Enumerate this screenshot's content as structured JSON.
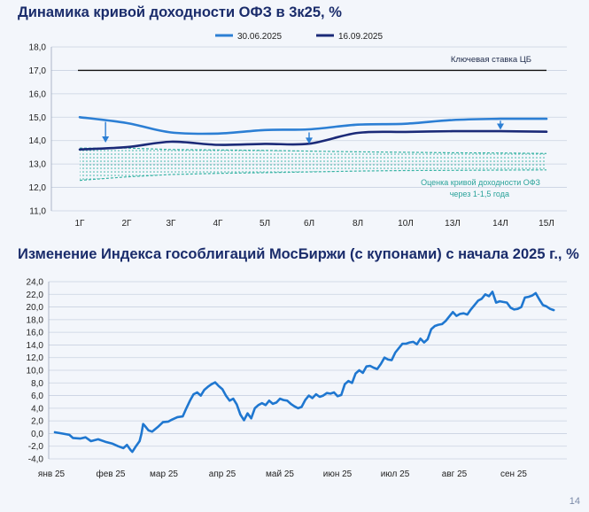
{
  "page_number": "14",
  "chart_data": [
    {
      "type": "line",
      "title": "Динамика кривой доходности ОФЗ в 3к25, %",
      "categories": [
        "1Г",
        "2Г",
        "3Г",
        "4Г",
        "5Л",
        "6Л",
        "8Л",
        "10Л",
        "13Л",
        "14Л",
        "15Л"
      ],
      "ylim": [
        11.0,
        18.0
      ],
      "yticks": [
        "11,0",
        "12,0",
        "13,0",
        "14,0",
        "15,0",
        "16,0",
        "17,0",
        "18,0"
      ],
      "grid": true,
      "legend_position": "top",
      "series": [
        {
          "name": "30.06.2025",
          "color": "#2c7fd4",
          "values": [
            15.0,
            14.75,
            14.35,
            14.3,
            14.45,
            14.48,
            14.68,
            14.72,
            14.88,
            14.93,
            14.93
          ]
        },
        {
          "name": "16.09.2025",
          "color": "#1b2a78",
          "values": [
            13.62,
            13.72,
            13.95,
            13.82,
            13.86,
            13.87,
            14.33,
            14.37,
            14.4,
            14.4,
            14.38
          ]
        }
      ],
      "reference_line": {
        "label": "Ключевая ставка ЦБ",
        "value": 17.0,
        "color": "#111111"
      },
      "forecast_band": {
        "label_line1": "Оценка кривой доходности ОФЗ",
        "label_line2": "через 1-1,5 года",
        "color": "#37b3a4",
        "upper": [
          13.68,
          13.68,
          13.62,
          13.6,
          13.58,
          13.55,
          13.52,
          13.5,
          13.48,
          13.47,
          13.45
        ],
        "lower": [
          12.3,
          12.45,
          12.55,
          12.6,
          12.63,
          12.66,
          12.7,
          12.72,
          12.73,
          12.74,
          12.75
        ]
      },
      "arrows": [
        {
          "x_index": 0.55,
          "from": 14.8,
          "to": 13.95
        },
        {
          "x_index": 5.0,
          "from": 14.35,
          "to": 13.9
        },
        {
          "x_index": 9.0,
          "from": 14.85,
          "to": 14.5
        }
      ]
    },
    {
      "type": "line",
      "title": "Изменение Индекса гособлигаций МосБиржи (с купонами) с начала 2025 г., %",
      "ylim": [
        -4.0,
        24.0
      ],
      "yticks": [
        "-4,0",
        "-2,0",
        "0,0",
        "2,0",
        "4,0",
        "6,0",
        "8,0",
        "10,0",
        "12,0",
        "14,0",
        "16,0",
        "18,0",
        "20,0",
        "22,0",
        "24,0"
      ],
      "xticks": [
        "янв 25",
        "фев 25",
        "мар 25",
        "апр 25",
        "май 25",
        "июн 25",
        "июл 25",
        "авг 25",
        "сен 25"
      ],
      "x_range_days": [
        0,
        272
      ],
      "grid": true,
      "series": [
        {
          "name": "Индекс гособлигаций МосБиржи",
          "color": "#1f77d0",
          "points": [
            [
              0,
              0.2
            ],
            [
              4,
              0.0
            ],
            [
              8,
              -0.2
            ],
            [
              10,
              -0.7
            ],
            [
              14,
              -0.8
            ],
            [
              17,
              -0.6
            ],
            [
              20,
              -1.2
            ],
            [
              24,
              -0.9
            ],
            [
              28,
              -1.3
            ],
            [
              32,
              -1.6
            ],
            [
              35,
              -2.0
            ],
            [
              38,
              -2.3
            ],
            [
              40,
              -1.8
            ],
            [
              42,
              -2.6
            ],
            [
              43,
              -2.9
            ],
            [
              45,
              -2.0
            ],
            [
              47,
              -1.2
            ],
            [
              48,
              -0.1
            ],
            [
              49,
              1.5
            ],
            [
              50,
              1.2
            ],
            [
              52,
              0.5
            ],
            [
              54,
              0.3
            ],
            [
              57,
              1.0
            ],
            [
              60,
              1.8
            ],
            [
              63,
              1.9
            ],
            [
              65,
              2.2
            ],
            [
              68,
              2.6
            ],
            [
              71,
              2.7
            ],
            [
              73,
              4.0
            ],
            [
              75,
              5.2
            ],
            [
              77,
              6.2
            ],
            [
              79,
              6.5
            ],
            [
              81,
              6.0
            ],
            [
              83,
              6.9
            ],
            [
              85,
              7.4
            ],
            [
              87,
              7.8
            ],
            [
              89,
              8.1
            ],
            [
              91,
              7.5
            ],
            [
              93,
              7.0
            ],
            [
              95,
              6.0
            ],
            [
              97,
              5.2
            ],
            [
              99,
              5.5
            ],
            [
              101,
              4.6
            ],
            [
              103,
              3.0
            ],
            [
              105,
              2.1
            ],
            [
              107,
              3.2
            ],
            [
              109,
              2.4
            ],
            [
              111,
              4.0
            ],
            [
              113,
              4.5
            ],
            [
              115,
              4.8
            ],
            [
              117,
              4.5
            ],
            [
              119,
              5.2
            ],
            [
              121,
              4.7
            ],
            [
              123,
              4.9
            ],
            [
              125,
              5.5
            ],
            [
              127,
              5.3
            ],
            [
              129,
              5.2
            ],
            [
              131,
              4.7
            ],
            [
              133,
              4.3
            ],
            [
              135,
              4.0
            ],
            [
              137,
              4.2
            ],
            [
              139,
              5.3
            ],
            [
              141,
              6.0
            ],
            [
              143,
              5.6
            ],
            [
              145,
              6.2
            ],
            [
              147,
              5.8
            ],
            [
              149,
              6.0
            ],
            [
              151,
              6.4
            ],
            [
              153,
              6.3
            ],
            [
              155,
              6.5
            ],
            [
              157,
              5.9
            ],
            [
              159,
              6.1
            ],
            [
              161,
              7.8
            ],
            [
              163,
              8.3
            ],
            [
              165,
              8.0
            ],
            [
              167,
              9.5
            ],
            [
              169,
              10.0
            ],
            [
              171,
              9.6
            ],
            [
              173,
              10.6
            ],
            [
              175,
              10.7
            ],
            [
              177,
              10.4
            ],
            [
              179,
              10.2
            ],
            [
              181,
              11.0
            ],
            [
              183,
              12.0
            ],
            [
              185,
              11.7
            ],
            [
              187,
              11.6
            ],
            [
              189,
              12.8
            ],
            [
              191,
              13.5
            ],
            [
              193,
              14.2
            ],
            [
              195,
              14.2
            ],
            [
              197,
              14.4
            ],
            [
              199,
              14.5
            ],
            [
              201,
              14.1
            ],
            [
              203,
              15.0
            ],
            [
              205,
              14.4
            ],
            [
              207,
              14.9
            ],
            [
              209,
              16.5
            ],
            [
              211,
              17.0
            ],
            [
              213,
              17.2
            ],
            [
              215,
              17.3
            ],
            [
              217,
              17.8
            ],
            [
              219,
              18.5
            ],
            [
              221,
              19.2
            ],
            [
              223,
              18.6
            ],
            [
              225,
              18.9
            ],
            [
              227,
              19.0
            ],
            [
              229,
              18.8
            ],
            [
              231,
              19.6
            ],
            [
              233,
              20.3
            ],
            [
              235,
              21.0
            ],
            [
              237,
              21.3
            ],
            [
              239,
              22.0
            ],
            [
              241,
              21.7
            ],
            [
              243,
              22.4
            ],
            [
              245,
              20.7
            ],
            [
              247,
              20.9
            ],
            [
              249,
              20.8
            ],
            [
              251,
              20.7
            ],
            [
              253,
              19.9
            ],
            [
              255,
              19.6
            ],
            [
              257,
              19.7
            ],
            [
              259,
              20.0
            ],
            [
              261,
              21.5
            ],
            [
              263,
              21.6
            ],
            [
              265,
              21.8
            ],
            [
              267,
              22.2
            ],
            [
              269,
              21.2
            ],
            [
              271,
              20.3
            ],
            [
              273,
              20.1
            ],
            [
              275,
              19.7
            ],
            [
              277,
              19.5
            ]
          ]
        }
      ]
    }
  ]
}
